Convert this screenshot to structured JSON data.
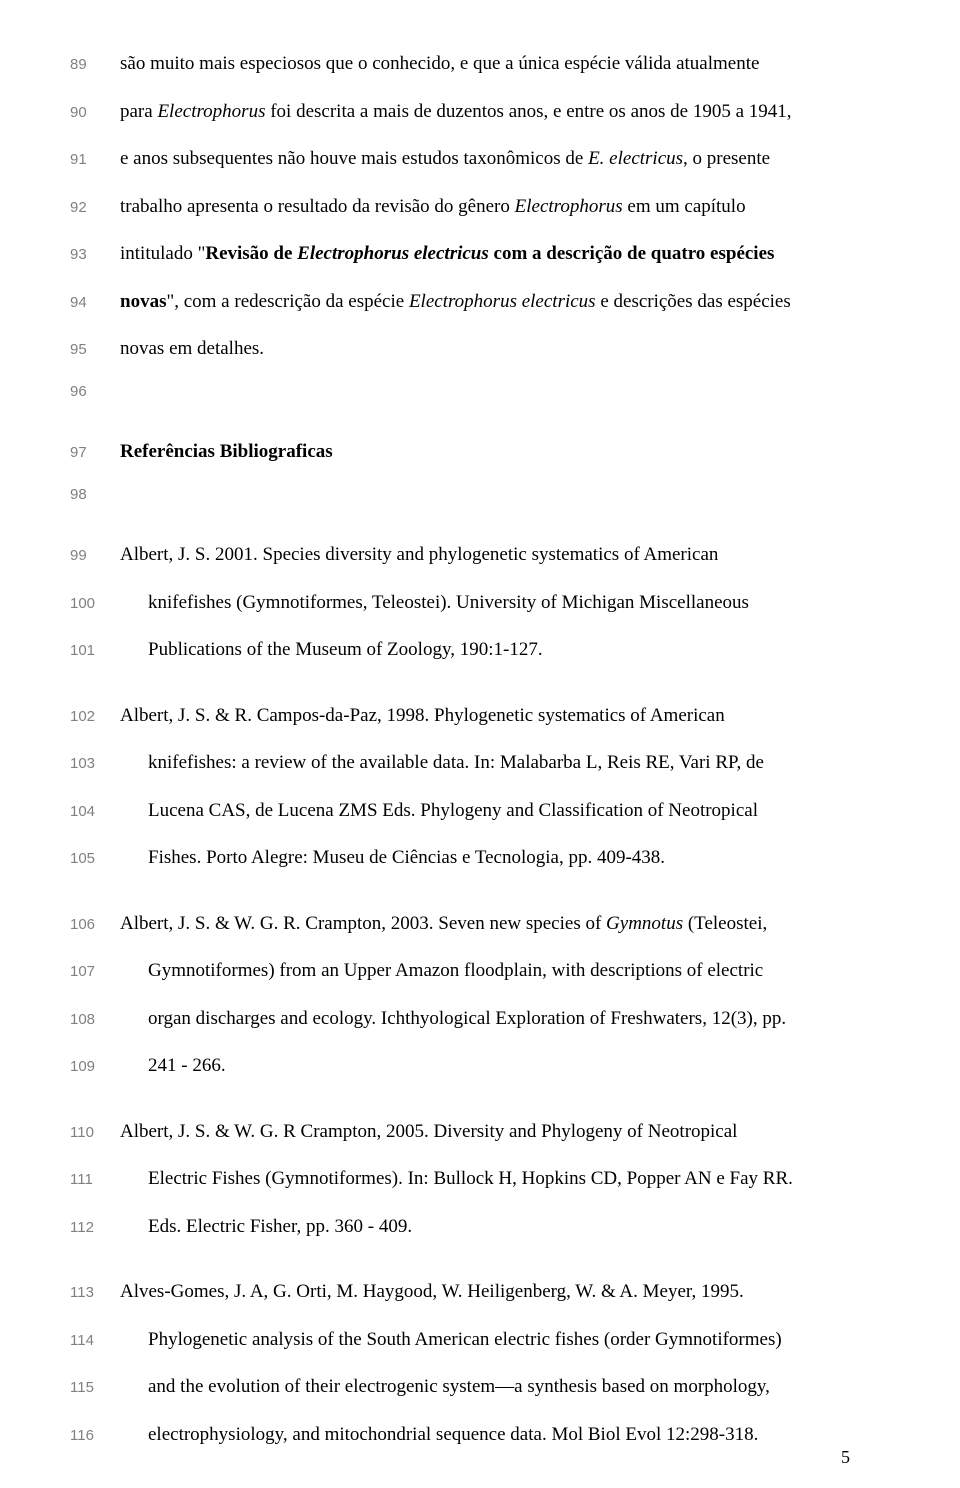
{
  "typography": {
    "body_font": "Times New Roman",
    "body_font_size_pt": 14,
    "line_num_font": "Arial",
    "line_num_font_size_pt": 11,
    "line_num_color": "#808080",
    "text_color": "#000000",
    "background_color": "#ffffff",
    "line_height": 2.5,
    "text_align": "justify"
  },
  "page_number": "5",
  "lines": {
    "l89_num": "89",
    "l89_a": "são muito mais especiosos que o conhecido, e que a única espécie válida atualmente",
    "l90_num": "90",
    "l90_a": "para ",
    "l90_b": "Electrophorus",
    "l90_c": " foi descrita a mais de duzentos anos, e entre os anos de 1905 a 1941,",
    "l91_num": "91",
    "l91_a": "e anos subsequentes não houve mais estudos taxonômicos de ",
    "l91_b": "E. electricus",
    "l91_c": ", o presente",
    "l92_num": "92",
    "l92_a": "trabalho apresenta o resultado da revisão do gênero ",
    "l92_b": "Electrophorus",
    "l92_c": " em um capítulo",
    "l93_num": "93",
    "l93_a": "intitulado \"",
    "l93_b": "Revisão de ",
    "l93_c": "Electrophorus electricus",
    "l93_d": " com a descrição de quatro espécies",
    "l94_num": "94",
    "l94_a": "novas",
    "l94_b": "\", com a redescrição da espécie ",
    "l94_c": "Electrophorus electricus",
    "l94_d": " e descrições das espécies",
    "l95_num": "95",
    "l95_a": "novas em detalhes.",
    "l96_num": "96",
    "l97_num": "97",
    "l97_a": "Referências Bibliograficas",
    "l98_num": "98",
    "l99_num": "99",
    "l99_a": "Albert, J. S. 2001. Species diversity and phylogenetic systematics of American",
    "l100_num": "100",
    "l100_a": "knifefishes (Gymnotiformes, Teleostei). University of Michigan Miscellaneous",
    "l101_num": "101",
    "l101_a": "Publications of the Museum of Zoology, 190:1-127.",
    "l102_num": "102",
    "l102_a": "Albert, J. S. & R. Campos-da-Paz, 1998. Phylogenetic systematics of American",
    "l103_num": "103",
    "l103_a": "knifefishes: a review of the available data. In: Malabarba L, Reis RE, Vari RP, de",
    "l104_num": "104",
    "l104_a": "Lucena CAS, de Lucena ZMS Eds. Phylogeny and Classification of Neotropical",
    "l105_num": "105",
    "l105_a": "Fishes. Porto Alegre: Museu de Ciências e Tecnologia, pp. 409-438.",
    "l106_num": "106",
    "l106_a": "Albert, J. S. & W. G. R. Crampton, 2003. Seven new species of ",
    "l106_b": "Gymnotus",
    "l106_c": " (Teleostei,",
    "l107_num": "107",
    "l107_a": "Gymnotiformes) from an Upper Amazon floodplain, with descriptions of electric",
    "l108_num": "108",
    "l108_a": "organ discharges and ecology. Ichthyological Exploration of Freshwaters, 12(3), pp.",
    "l109_num": "109",
    "l109_a": "241 - 266.",
    "l110_num": "110",
    "l110_a": "Albert, J. S. & W. G. R Crampton, 2005. Diversity and Phylogeny of Neotropical",
    "l111_num": "111",
    "l111_a": "Electric Fishes (Gymnotiformes). In: Bullock H, Hopkins CD, Popper AN e Fay RR.",
    "l112_num": "112",
    "l112_a": "Eds. Electric Fisher, pp. 360 - 409.",
    "l113_num": "113",
    "l113_a": "Alves-Gomes, J. A, G. Orti, M. Haygood, W. Heiligenberg, W. & A. Meyer, 1995.",
    "l114_num": "114",
    "l114_a": "Phylogenetic analysis of the South American electric fishes (order Gymnotiformes)",
    "l115_num": "115",
    "l115_a": "and the evolution of their electrogenic system—a synthesis based on morphology,",
    "l116_num": "116",
    "l116_a": "electrophysiology, and mitochondrial sequence data. Mol Biol Evol 12:298-318."
  }
}
